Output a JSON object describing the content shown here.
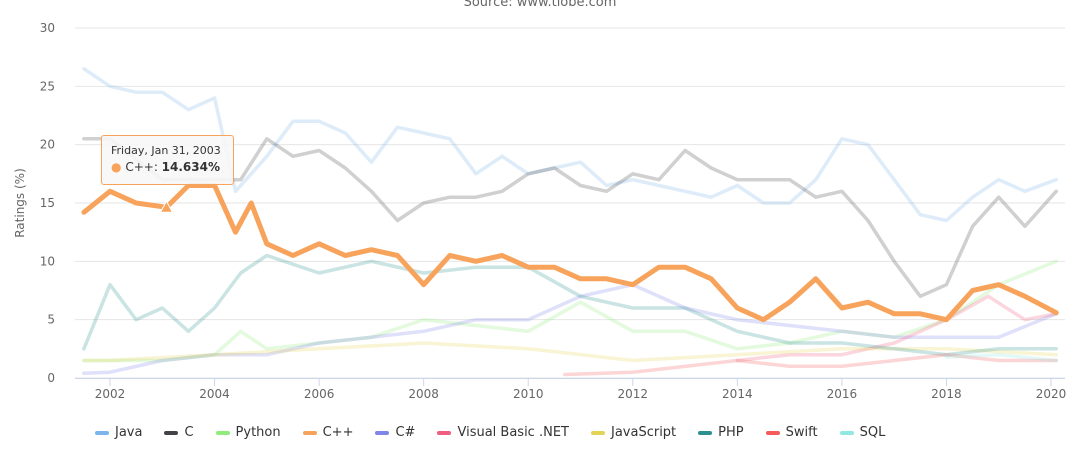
{
  "chart_data": {
    "type": "line",
    "subtitle": "Source: www.tiobe.com",
    "ylabel": "Ratings (%)",
    "ylim": [
      0,
      30
    ],
    "yticks": [
      "0",
      "5",
      "10",
      "15",
      "20",
      "25",
      "30"
    ],
    "xlim": [
      2001.5,
      2020.2
    ],
    "xticks": [
      "2002",
      "2004",
      "2006",
      "2008",
      "2010",
      "2012",
      "2014",
      "2016",
      "2018",
      "2020"
    ],
    "grid": true,
    "legend_position": "bottom",
    "highlighted_series": "C++",
    "tooltip": {
      "date": "Friday, Jan 31, 2003",
      "series": "C++",
      "value": "14.634%",
      "x": 2003.08,
      "y": 14.634
    },
    "series": [
      {
        "name": "Java",
        "color": "#7cb5ec",
        "x": [
          2001.5,
          2002,
          2002.5,
          2003,
          2003.5,
          2004,
          2004.4,
          2005,
          2005.5,
          2006,
          2006.5,
          2007,
          2007.5,
          2008,
          2008.5,
          2009,
          2009.5,
          2010,
          2010.5,
          2011,
          2011.5,
          2012,
          2012.5,
          2013,
          2013.5,
          2014,
          2014.5,
          2015,
          2015.5,
          2016,
          2016.5,
          2017,
          2017.5,
          2018,
          2018.5,
          2019,
          2019.5,
          2020.1
        ],
        "y": [
          26.5,
          25,
          24.5,
          24.5,
          23,
          24,
          16,
          19,
          22,
          22,
          21,
          18.5,
          21.5,
          21,
          20.5,
          17.5,
          19,
          17.5,
          18,
          18.5,
          16.5,
          17,
          16.5,
          16,
          15.5,
          16.5,
          15,
          15,
          17,
          20.5,
          20,
          17,
          14,
          13.5,
          15.5,
          17,
          16,
          17
        ]
      },
      {
        "name": "C",
        "color": "#434348",
        "x": [
          2001.5,
          2002,
          2003,
          2004,
          2004.5,
          2005,
          2005.5,
          2006,
          2006.5,
          2007,
          2007.5,
          2008,
          2008.5,
          2009,
          2009.5,
          2010,
          2010.5,
          2011,
          2011.5,
          2012,
          2012.5,
          2013,
          2013.5,
          2014,
          2014.5,
          2015,
          2015.5,
          2016,
          2016.5,
          2017,
          2017.5,
          2018,
          2018.5,
          2019,
          2019.5,
          2020.1
        ],
        "y": [
          20.5,
          20.5,
          17,
          17,
          17,
          20.5,
          19,
          19.5,
          18,
          16,
          13.5,
          15,
          15.5,
          15.5,
          16,
          17.5,
          18,
          16.5,
          16,
          17.5,
          17,
          19.5,
          18,
          17,
          17,
          17,
          15.5,
          16,
          13.5,
          10,
          7,
          8,
          13,
          15.5,
          13,
          16
        ]
      },
      {
        "name": "Python",
        "color": "#90ed7d",
        "x": [
          2001.5,
          2002,
          2003,
          2004,
          2004.5,
          2005,
          2006,
          2007,
          2008,
          2009,
          2010,
          2011,
          2012,
          2013,
          2014,
          2015,
          2016,
          2017,
          2018,
          2019,
          2020.1
        ],
        "y": [
          1.5,
          1.5,
          1.5,
          2,
          4,
          2.5,
          3,
          3.5,
          5,
          4.5,
          4,
          6.5,
          4,
          4,
          2.5,
          3,
          4,
          3.5,
          5,
          8,
          10
        ]
      },
      {
        "name": "C++",
        "color": "#f7a35c",
        "x": [
          2001.5,
          2002,
          2002.5,
          2003.08,
          2003.5,
          2004,
          2004.4,
          2004.7,
          2005,
          2005.5,
          2006,
          2006.5,
          2007,
          2007.5,
          2008,
          2008.5,
          2009,
          2009.5,
          2010,
          2010.5,
          2011,
          2011.5,
          2012,
          2012.5,
          2013,
          2013.5,
          2014,
          2014.5,
          2015,
          2015.5,
          2016,
          2016.5,
          2017,
          2017.5,
          2018,
          2018.5,
          2019,
          2019.5,
          2020.1
        ],
        "y": [
          14.2,
          16,
          15,
          14.634,
          16.5,
          16.5,
          12.5,
          15,
          11.5,
          10.5,
          11.5,
          10.5,
          11,
          10.5,
          8,
          10.5,
          10,
          10.5,
          9.5,
          9.5,
          8.5,
          8.5,
          8,
          9.5,
          9.5,
          8.5,
          6,
          5,
          6.5,
          8.5,
          6,
          6.5,
          5.5,
          5.5,
          5,
          7.5,
          8,
          7,
          5.6
        ]
      },
      {
        "name": "C#",
        "color": "#8085e9",
        "x": [
          2001.5,
          2002,
          2003,
          2004,
          2005,
          2006,
          2007,
          2008,
          2009,
          2010,
          2011,
          2012,
          2013,
          2014,
          2015,
          2016,
          2017,
          2018,
          2019,
          2020.1
        ],
        "y": [
          0.4,
          0.5,
          1.5,
          2,
          2,
          3,
          3.5,
          4,
          5,
          5,
          7,
          8,
          6,
          5,
          4.5,
          4,
          3.5,
          3.5,
          3.5,
          5.5
        ]
      },
      {
        "name": "Visual Basic .NET",
        "color": "#f15c80",
        "x": [
          2014,
          2015,
          2016,
          2017,
          2018,
          2018.8,
          2019.5,
          2020.1
        ],
        "y": [
          1.5,
          2,
          2,
          3,
          5,
          7,
          5,
          5.5
        ]
      },
      {
        "name": "JavaScript",
        "color": "#e4d354",
        "x": [
          2001.5,
          2002,
          2004,
          2006,
          2008,
          2010,
          2012,
          2014,
          2016,
          2018,
          2020.1
        ],
        "y": [
          1.5,
          1.5,
          2,
          2.5,
          3,
          2.5,
          1.5,
          2,
          2.5,
          2.5,
          2
        ]
      },
      {
        "name": "PHP",
        "color": "#2b908f",
        "x": [
          2001.5,
          2002,
          2002.5,
          2003,
          2003.5,
          2004,
          2004.5,
          2005,
          2006,
          2007,
          2008,
          2009,
          2010,
          2011,
          2012,
          2013,
          2014,
          2015,
          2016,
          2017,
          2018,
          2019,
          2020.1
        ],
        "y": [
          2.5,
          8,
          5,
          6,
          4,
          6,
          9,
          10.5,
          9,
          10,
          9,
          9.5,
          9.5,
          7,
          6,
          6,
          4,
          3,
          3,
          2.5,
          2,
          2.5,
          2.5
        ]
      },
      {
        "name": "Swift",
        "color": "#f45b5b",
        "x": [
          2010.7,
          2012,
          2014,
          2015,
          2016,
          2017,
          2018,
          2019,
          2020.1
        ],
        "y": [
          0.3,
          0.5,
          1.5,
          1,
          1,
          1.5,
          2,
          1.5,
          1.5
        ]
      },
      {
        "name": "SQL",
        "color": "#91e8e1",
        "x": [
          2018,
          2019,
          2020.1
        ],
        "y": [
          1.8,
          2,
          1.5
        ]
      }
    ]
  }
}
